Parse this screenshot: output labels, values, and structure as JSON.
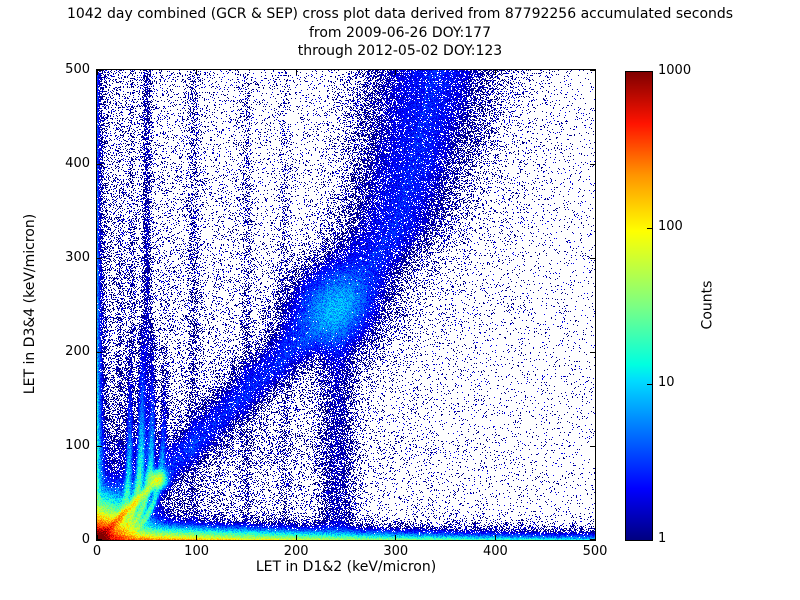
{
  "figure": {
    "title_line1": "1042 day combined (GCR & SEP) cross plot data derived from 87792256 accumulated seconds",
    "title_line2": "from 2009-06-26 DOY:177",
    "title_line3": "through 2012-05-02 DOY:123"
  },
  "axes": {
    "xlabel": "LET in D1&2 (keV/micron)",
    "ylabel": "LET in D3&4 (keV/micron)",
    "x_tick_labels": [
      "0",
      "100",
      "200",
      "300",
      "400",
      "500"
    ],
    "y_tick_labels": [
      "0",
      "100",
      "200",
      "300",
      "400",
      "500"
    ]
  },
  "colorbar": {
    "label": "Counts",
    "tick_labels": [
      "1",
      "10",
      "100",
      "1000"
    ],
    "scale": "log",
    "min": 1,
    "max": 1000,
    "colormap": "jet"
  },
  "chart_data": {
    "type": "heatmap",
    "title": "1042 day combined (GCR & SEP) cross plot data derived from 87792256 accumulated seconds",
    "subtitle": [
      "from 2009-06-26 DOY:177",
      "through 2012-05-02 DOY:123"
    ],
    "days": 1042,
    "accumulated_seconds": 87792256,
    "date_start": "2009-06-26",
    "date_start_doy": 177,
    "date_end": "2012-05-02",
    "date_end_doy": 123,
    "xlabel": "LET in D1&2 (keV/micron)",
    "ylabel": "LET in D3&4 (keV/micron)",
    "xlim": [
      0,
      500
    ],
    "ylim": [
      0,
      500
    ],
    "colormap": "jet",
    "color_scale": "log",
    "clim": [
      1,
      1000
    ],
    "counts_label": "Counts",
    "features": [
      {
        "type": "background",
        "amp": 0.55,
        "x_scale": 160,
        "y_scale": 400,
        "floor": 0.035
      },
      {
        "type": "edge_left",
        "amp": 26,
        "decay_along": 130,
        "base": 2.8,
        "thickness": 2.8
      },
      {
        "type": "edge_bottom",
        "amp": 300,
        "decay_along": 90,
        "amp2": 35,
        "decay2": 300,
        "amp3": 60,
        "decay3": 200,
        "thin": 1.3,
        "thickness": 4.2
      },
      {
        "type": "blob",
        "x": 0,
        "y": 0,
        "amp": 2600,
        "r": 6.5,
        "gauss": false
      },
      {
        "type": "blob",
        "x": 0,
        "y": 0,
        "amp": 280,
        "r": 13,
        "gauss": false
      },
      {
        "type": "ray",
        "slope": 1.05,
        "amp": 420,
        "decay": 30,
        "sigma": 2.3,
        "t_max": 86,
        "t_soft": 7
      },
      {
        "type": "blob",
        "x": 60,
        "y": 64,
        "amp": 55,
        "r": 5,
        "gauss": true
      },
      {
        "type": "stopping_curve",
        "x_asym": 33,
        "amp": 45,
        "sigma": 2.0,
        "rise": 26,
        "y0": 14,
        "decay": 45,
        "y_max": 215
      },
      {
        "type": "stopping_curve",
        "x_asym": 45,
        "amp": 70,
        "sigma": 2.2,
        "rise": 28,
        "y0": 15,
        "decay": 50,
        "y_max": 230
      },
      {
        "type": "stopping_curve",
        "x_asym": 56,
        "amp": 50,
        "sigma": 2.0,
        "rise": 30,
        "y0": 16,
        "decay": 50,
        "y_max": 230
      },
      {
        "type": "stopping_curve",
        "x_asym": 68,
        "amp": 30,
        "sigma": 2.0,
        "rise": 32,
        "y0": 17,
        "decay": 48,
        "y_max": 210
      },
      {
        "type": "stripe_v",
        "x": 23,
        "amp": 0.8,
        "sigma": 2.2,
        "y_decay": 260
      },
      {
        "type": "stripe_v",
        "x": 35,
        "amp": 0.9,
        "sigma": 2.4,
        "y_decay": 300
      },
      {
        "type": "stripe_v",
        "x": 50,
        "amp": 1.5,
        "sigma": 2.8,
        "y_decay": 1200
      },
      {
        "type": "stripe_v",
        "x": 97,
        "amp": 0.6,
        "sigma": 3.5,
        "y_decay": 1200
      },
      {
        "type": "stripe_v",
        "x": 150,
        "amp": 0.45,
        "sigma": 3.5,
        "y_decay": 1200
      },
      {
        "type": "stripe_v",
        "x": 188,
        "amp": 0.32,
        "sigma": 3.5,
        "y_decay": 1200
      },
      {
        "type": "band_curve",
        "points": [
          [
            0,
            0
          ],
          [
            60,
            63
          ],
          [
            120,
            128
          ],
          [
            185,
            195
          ],
          [
            240,
            248
          ],
          [
            295,
            332
          ],
          [
            318,
            420
          ],
          [
            334,
            500
          ]
        ],
        "amp": 2.3,
        "w0": 9,
        "w_slope": 0.055,
        "right_fan_amp": 0.5,
        "right_fan_scale": 50,
        "y_min": 35
      },
      {
        "type": "blob",
        "x": 238,
        "y": 246,
        "amp": 4.5,
        "r": 26,
        "gauss": true
      },
      {
        "type": "plume_v",
        "x": 241,
        "amp": 1.2,
        "sigma": 11,
        "y_top": 250,
        "soft": 25
      },
      {
        "type": "cluster_h",
        "y": 97,
        "amp": 0.7,
        "sigma": 9,
        "x_decay": 95
      }
    ]
  }
}
